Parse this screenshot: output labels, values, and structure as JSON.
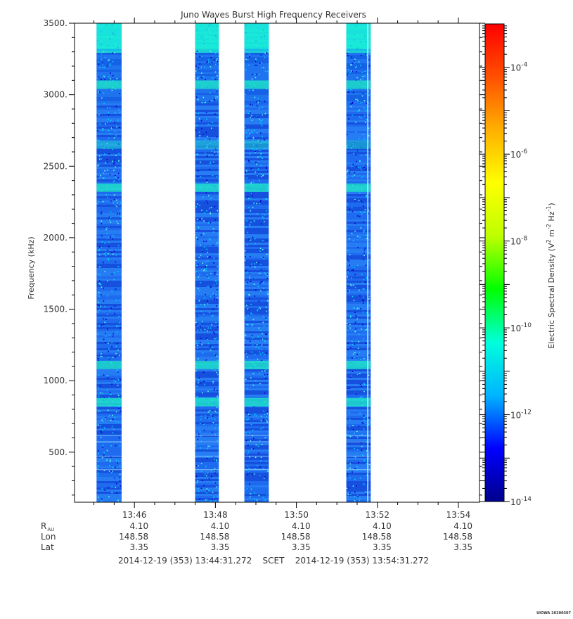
{
  "chart_data": {
    "type": "heatmap",
    "title": "Juno Waves Burst High Frequency Receivers",
    "ylabel": "Frequency (kHz)",
    "colorbar_label": "Electric Spectral Density (V^2 m^-2 Hz^-1)",
    "ylim": [
      150,
      3500
    ],
    "yticks": [
      500,
      1000,
      1500,
      2000,
      2500,
      3000,
      3500
    ],
    "ytick_labels": [
      "500.",
      "1000.",
      "1500.",
      "2000.",
      "2500.",
      "3000.",
      "3500."
    ],
    "x_start_seconds": 49471.272,
    "x_end_seconds": 50071.272,
    "xticks_seconds": [
      49560,
      49680,
      49800,
      49920,
      50040
    ],
    "xtick_labels": [
      "13:46",
      "13:48",
      "13:50",
      "13:52",
      "13:54"
    ],
    "colorbar_log_range": [
      -14,
      -3
    ],
    "colorbar_ticks": [
      -14,
      -12,
      -10,
      -8,
      -6,
      -4
    ],
    "colorbar_tick_labels": [
      {
        "base": "10",
        "exp": "-14"
      },
      {
        "base": "10",
        "exp": "-12"
      },
      {
        "base": "10",
        "exp": "-10"
      },
      {
        "base": "10",
        "exp": "-8"
      },
      {
        "base": "10",
        "exp": "-6"
      },
      {
        "base": "10",
        "exp": "-4"
      }
    ],
    "colormap": [
      "#00008b",
      "#0000ff",
      "#00b4ff",
      "#00ffdc",
      "#00ff00",
      "#bfff00",
      "#ffff00",
      "#ffb000",
      "#ff5000",
      "#ff0000"
    ],
    "bursts": [
      {
        "start_seconds": 49504,
        "end_seconds": 49541
      },
      {
        "start_seconds": 49650,
        "end_seconds": 49685
      },
      {
        "start_seconds": 49723,
        "end_seconds": 49759
      },
      {
        "start_seconds": 49874,
        "end_seconds": 49910
      }
    ],
    "intensity_bands_khz": [
      {
        "freq": 3070,
        "level": "high"
      },
      {
        "freq": 2650,
        "level": "medium"
      },
      {
        "freq": 2350,
        "level": "high"
      },
      {
        "freq": 1110,
        "level": "high"
      },
      {
        "freq": 850,
        "level": "high"
      }
    ],
    "ephemeris_rows": [
      {
        "label": "R",
        "sub": "AU",
        "values": [
          "4.10",
          "4.10",
          "4.10",
          "4.10",
          "4.10"
        ]
      },
      {
        "label": "Lon",
        "sub": "",
        "values": [
          "148.58",
          "148.58",
          "148.58",
          "148.58",
          "148.58"
        ]
      },
      {
        "label": "Lat",
        "sub": "",
        "values": [
          "3.35",
          "3.35",
          "3.35",
          "3.35",
          "3.35"
        ]
      }
    ],
    "time_range_label": "2014-12-19 (353) 13:44:31.272    SCET    2014-12-19 (353) 13:54:31.272",
    "footer_tag": "UIOWA 20200307"
  }
}
